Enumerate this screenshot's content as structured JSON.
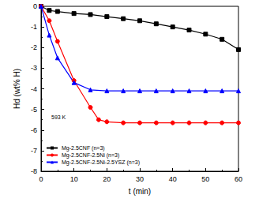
{
  "chart_data": {
    "type": "line",
    "x_label": "t (min)",
    "y_label": "Hd (wt% H)",
    "annotations": [
      "593 K"
    ],
    "xlim": [
      0,
      60
    ],
    "xticks": [
      0,
      10,
      20,
      30,
      40,
      50,
      60
    ],
    "ylim": [
      -8,
      0
    ],
    "yticks": [
      -8,
      -7,
      -6,
      -5,
      -4,
      -3,
      -2,
      -1,
      0
    ],
    "grid": false,
    "legend": "lower left",
    "series": [
      {
        "name": "Mg-2.5CNF (n=3)",
        "color": "#000000",
        "marker": "square",
        "x": [
          0,
          2.5,
          5,
          10,
          15,
          20,
          25,
          30,
          35,
          40,
          45,
          50,
          55,
          60
        ],
        "values": [
          0,
          -0.2,
          -0.25,
          -0.35,
          -0.4,
          -0.5,
          -0.6,
          -0.7,
          -0.85,
          -1.0,
          -1.15,
          -1.35,
          -1.6,
          -2.1
        ]
      },
      {
        "name": "Mg-2.5CNF-2.5Ni (n=3)",
        "color": "#ff0000",
        "marker": "circle",
        "x": [
          0,
          2.5,
          5,
          10,
          15,
          17.5,
          20,
          25,
          30,
          35,
          40,
          45,
          50,
          55,
          60
        ],
        "values": [
          0,
          -0.7,
          -1.7,
          -3.6,
          -4.9,
          -5.5,
          -5.6,
          -5.65,
          -5.65,
          -5.65,
          -5.65,
          -5.65,
          -5.65,
          -5.65,
          -5.65
        ]
      },
      {
        "name": "Mg-2.5CNF-2.5Ni-2.5YSZ (n=3)",
        "color": "#0000ff",
        "marker": "triangle",
        "x": [
          0,
          2.5,
          5,
          10,
          15,
          20,
          25,
          30,
          35,
          40,
          45,
          50,
          55,
          60
        ],
        "values": [
          0,
          -1.4,
          -2.5,
          -3.7,
          -4.05,
          -4.1,
          -4.1,
          -4.1,
          -4.1,
          -4.1,
          -4.1,
          -4.1,
          -4.1,
          -4.1
        ]
      }
    ]
  }
}
